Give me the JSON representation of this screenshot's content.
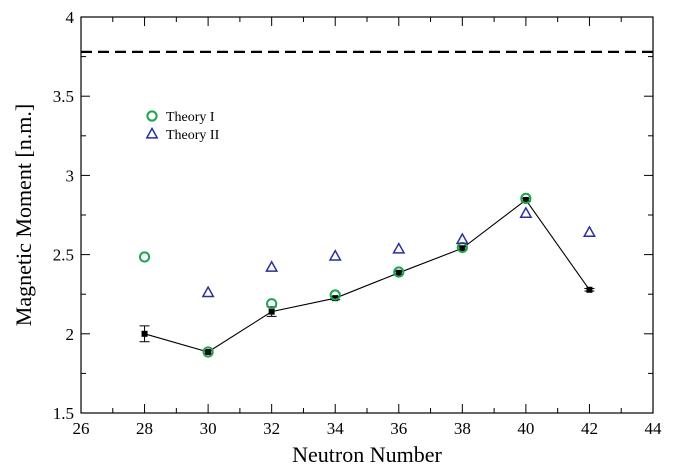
{
  "chart_data": {
    "type": "scatter",
    "title": "",
    "xlabel": "Neutron Number",
    "ylabel": "Magnetic Moment [n.m.]",
    "xlim": [
      26,
      44
    ],
    "ylim": [
      1.5,
      4
    ],
    "x_ticks": [
      26,
      28,
      30,
      32,
      34,
      36,
      38,
      40,
      42,
      44
    ],
    "x_tick_labels": [
      "26",
      "28",
      "30",
      "32",
      "34",
      "36",
      "38",
      "40",
      "42",
      "44"
    ],
    "y_ticks": [
      1.5,
      2,
      2.5,
      3,
      3.5,
      4
    ],
    "y_tick_labels": [
      "1.5",
      "2",
      "2.5",
      "3",
      "3.5",
      "4"
    ],
    "grid": false,
    "legend_position": "upper-left",
    "reference_line": {
      "y": 3.78,
      "style": "dashed",
      "color": "#000000"
    },
    "experiment": {
      "points": [
        {
          "x": 28,
          "y": 2.0,
          "err": 0.05
        },
        {
          "x": 30,
          "y": 1.885,
          "err": 0.008
        },
        {
          "x": 32,
          "y": 2.14,
          "err": 0.03
        },
        {
          "x": 34,
          "y": 2.225,
          "err": 0.01
        },
        {
          "x": 36,
          "y": 2.385,
          "err": 0.01
        },
        {
          "x": 38,
          "y": 2.54,
          "err": 0.01
        },
        {
          "x": 40,
          "y": 2.845,
          "err": 0.01
        },
        {
          "x": 42,
          "y": 2.278,
          "err": 0.008
        }
      ],
      "color": "#000000",
      "marker": "square",
      "line": "solid"
    },
    "series": [
      {
        "name": "Theory I",
        "marker": "circle",
        "color": "#1aa64a",
        "x": [
          28,
          30,
          32,
          34,
          36,
          38,
          40
        ],
        "values": [
          2.485,
          1.885,
          2.19,
          2.245,
          2.39,
          2.545,
          2.855
        ]
      },
      {
        "name": "Theory II",
        "marker": "triangle",
        "color": "#2a2f9e",
        "x": [
          30,
          32,
          34,
          36,
          38,
          40,
          42
        ],
        "values": [
          2.26,
          2.42,
          2.49,
          2.535,
          2.595,
          2.76,
          2.64
        ]
      }
    ]
  }
}
